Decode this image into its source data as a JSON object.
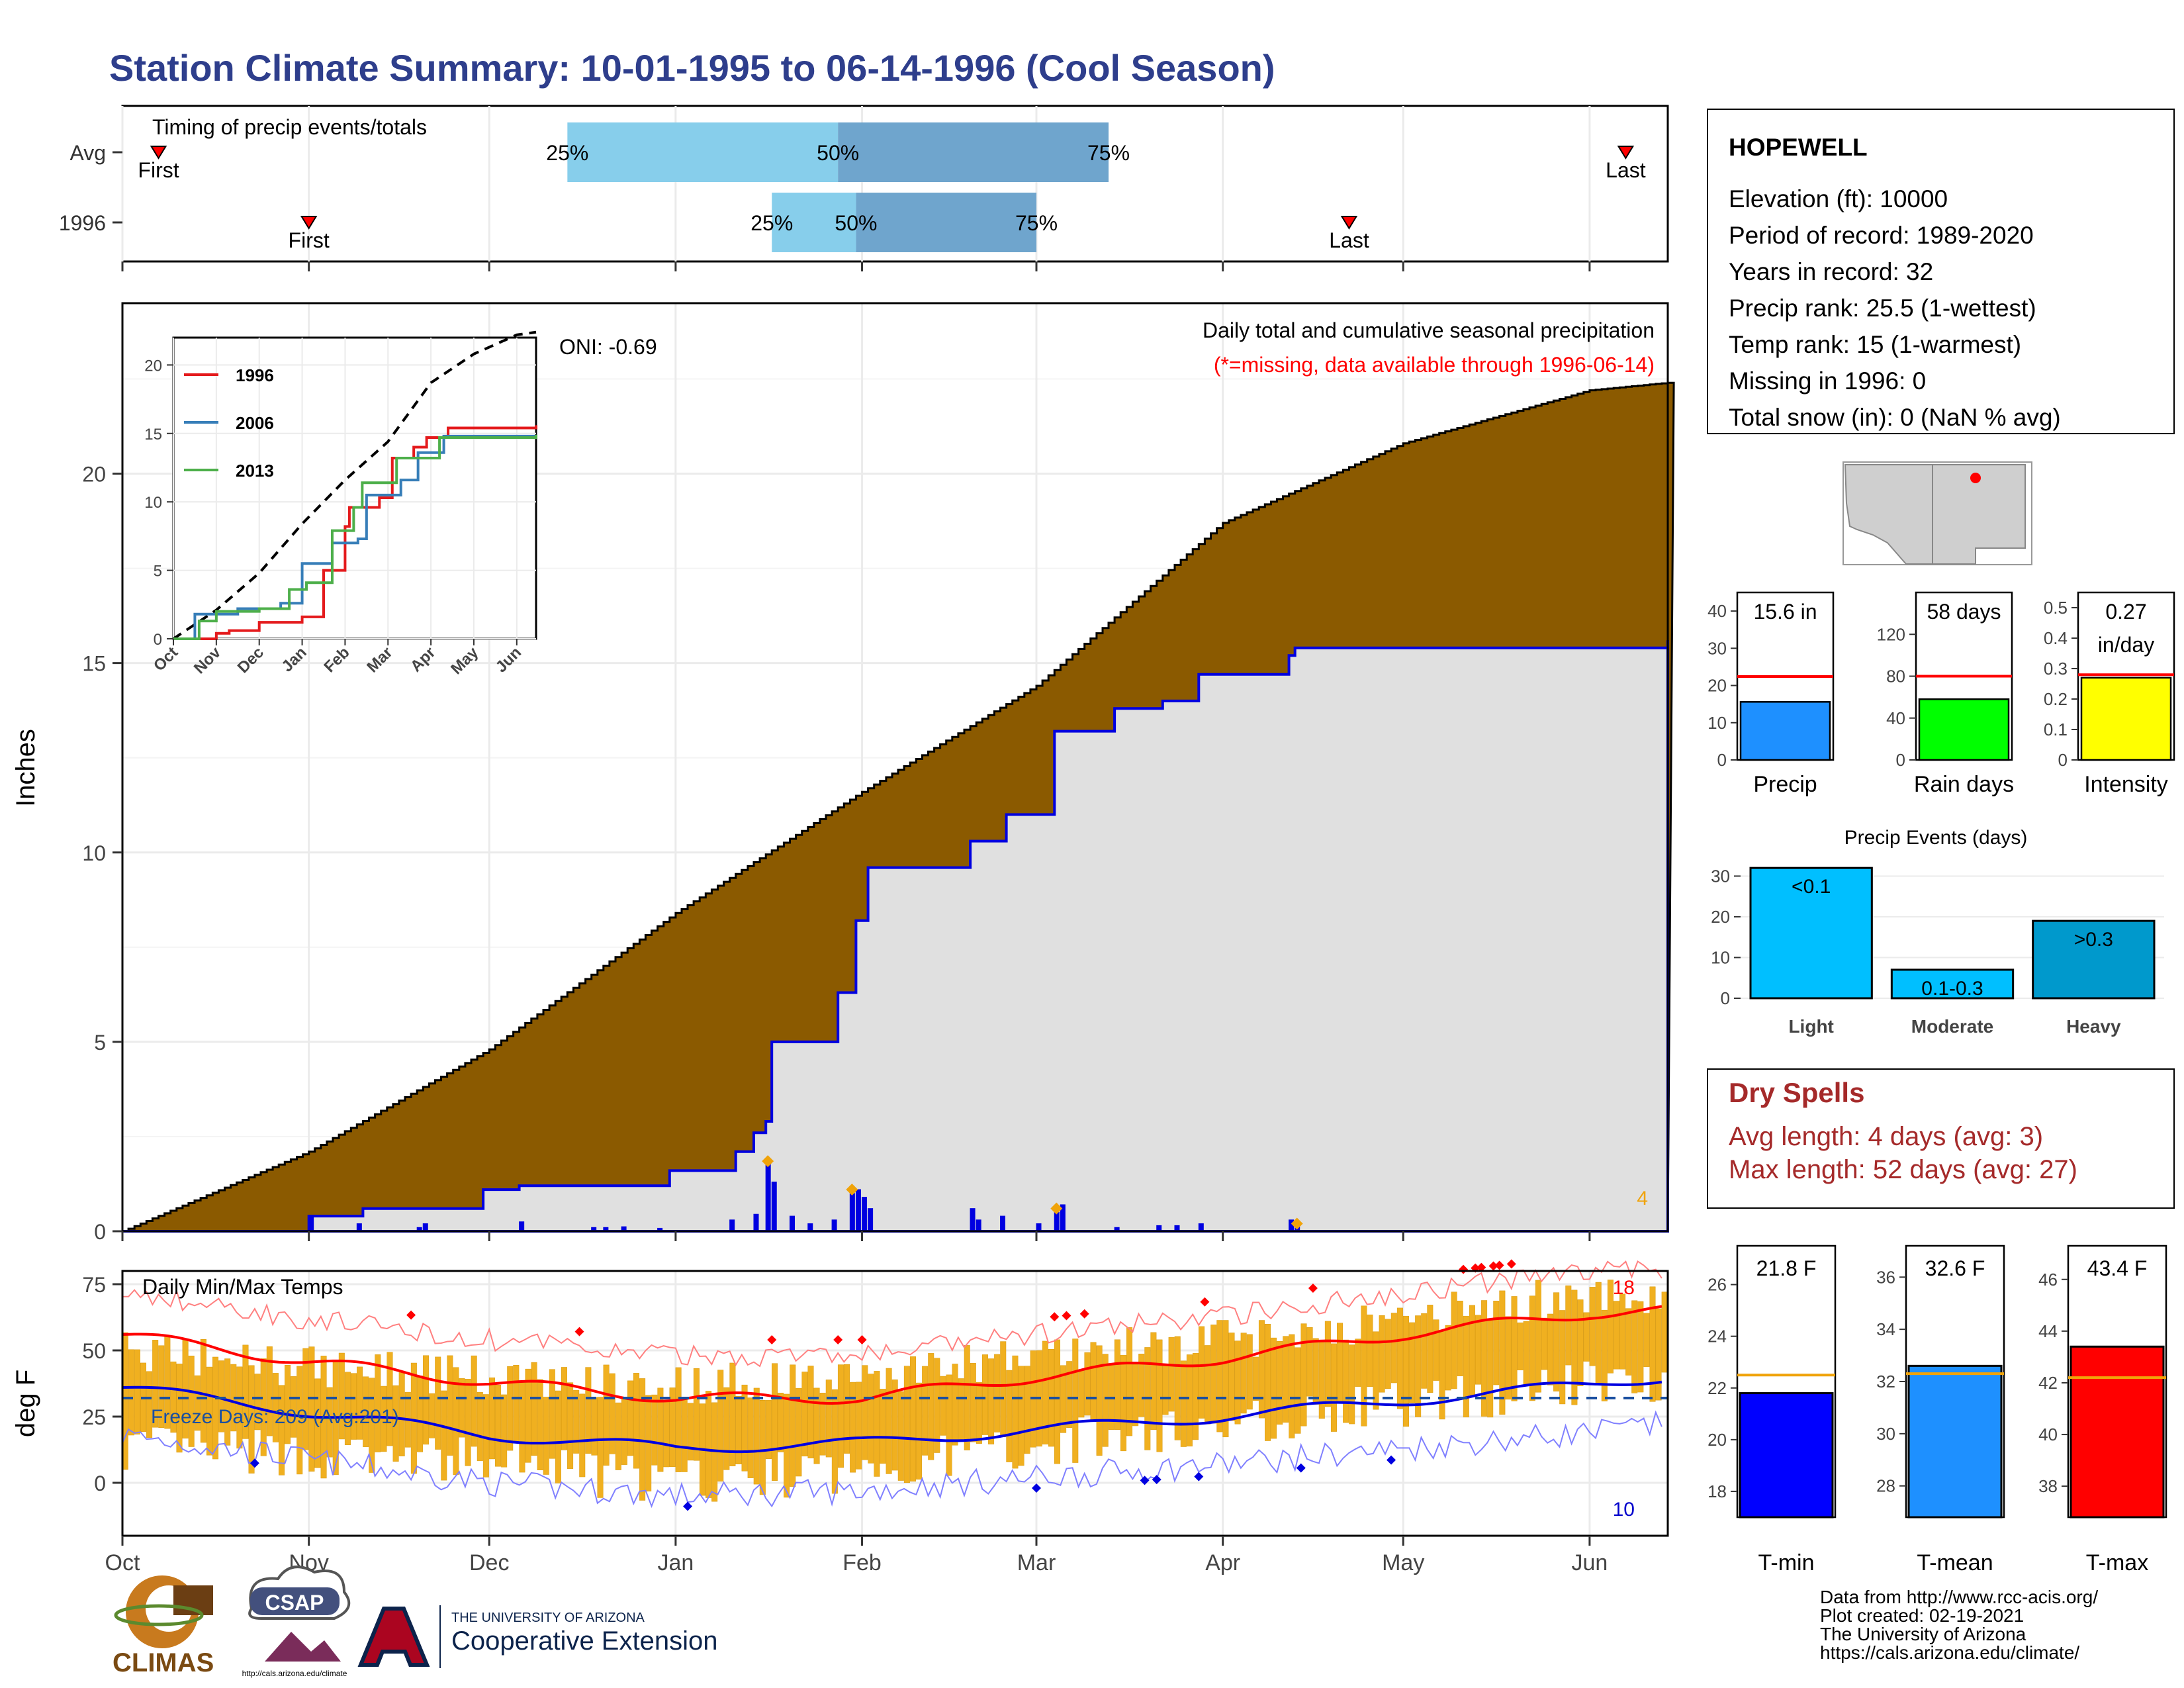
{
  "title": "Station Climate Summary: 10-01-1995 to 06-14-1996 (Cool Season)",
  "colors": {
    "brown": "#8b5a00",
    "gray_fill": "#e0e0e0",
    "blue_line": "#0000e0",
    "light_blue": "#87ceeb",
    "mid_blue": "#6fa5cd",
    "red": "#e41a1c",
    "orange": "#f0a30a",
    "dark_red_text": "#a52a2a",
    "green": "#00ff00",
    "yellow": "#ffff00",
    "cyan": "#00bfff",
    "teal": "#0099cc"
  },
  "timing": {
    "label": "Timing of precip events/totals",
    "rows": [
      {
        "name": "Avg",
        "first_label": "First",
        "last_label": "Last",
        "first": "1995-10-07",
        "last": "1996-06-07",
        "q25": "1995-12-14",
        "q50": "1996-01-28",
        "q75": "1996-03-13"
      },
      {
        "name": "1996",
        "first_label": "First",
        "last_label": "Last",
        "first": "1995-11-01",
        "last": "1996-04-22",
        "q25": "1996-01-17",
        "q50": "1996-01-31",
        "q75": "1996-03-01"
      }
    ],
    "q_labels": [
      "25%",
      "50%",
      "75%"
    ]
  },
  "precip": {
    "ylabel": "Inches",
    "header": "Daily total and cumulative seasonal precipitation",
    "subheader": "(*=missing, data available through 1996-06-14)",
    "oni": "ONI: -0.69",
    "corner_count": "4",
    "yticks": [
      "0",
      "5",
      "10",
      "15",
      "20"
    ],
    "chart_data": {
      "type": "area",
      "x_unit": "date",
      "avg_cumulative": [
        [
          "1995-10-01",
          0
        ],
        [
          "1995-11-01",
          2.1
        ],
        [
          "1995-12-01",
          4.8
        ],
        [
          "1996-01-01",
          8.4
        ],
        [
          "1996-02-01",
          11.6
        ],
        [
          "1996-03-01",
          14.4
        ],
        [
          "1996-04-01",
          18.7
        ],
        [
          "1996-05-01",
          20.8
        ],
        [
          "1996-06-01",
          22.2
        ],
        [
          "1996-06-14",
          22.4
        ]
      ],
      "year_cumulative": [
        [
          "1995-10-01",
          0
        ],
        [
          "1995-10-31",
          0
        ],
        [
          "1995-11-01",
          0.4
        ],
        [
          "1995-11-10",
          0.6
        ],
        [
          "1995-11-30",
          1.1
        ],
        [
          "1995-12-06",
          1.2
        ],
        [
          "1995-12-31",
          1.6
        ],
        [
          "1996-01-11",
          2.1
        ],
        [
          "1996-01-14",
          2.6
        ],
        [
          "1996-01-16",
          2.9
        ],
        [
          "1996-01-17",
          5.0
        ],
        [
          "1996-01-28",
          6.3
        ],
        [
          "1996-01-31",
          8.2
        ],
        [
          "1996-02-02",
          9.6
        ],
        [
          "1996-02-18",
          9.6
        ],
        [
          "1996-02-19",
          10.3
        ],
        [
          "1996-02-25",
          11.0
        ],
        [
          "1996-03-04",
          13.2
        ],
        [
          "1996-03-14",
          13.8
        ],
        [
          "1996-03-22",
          14.0
        ],
        [
          "1996-03-28",
          14.7
        ],
        [
          "1996-04-12",
          15.2
        ],
        [
          "1996-04-13",
          15.4
        ],
        [
          "1996-06-14",
          15.6
        ]
      ],
      "daily_events": [
        [
          "1995-11-01",
          0.4
        ],
        [
          "1995-11-09",
          0.2
        ],
        [
          "1995-11-19",
          0.1
        ],
        [
          "1995-11-20",
          0.2
        ],
        [
          "1995-12-06",
          0.25
        ],
        [
          "1995-12-18",
          0.1
        ],
        [
          "1995-12-20",
          0.1
        ],
        [
          "1995-12-23",
          0.12
        ],
        [
          "1995-12-29",
          0.08
        ],
        [
          "1996-01-10",
          0.3
        ],
        [
          "1996-01-14",
          0.45
        ],
        [
          "1996-01-16",
          1.85
        ],
        [
          "1996-01-17",
          1.3
        ],
        [
          "1996-01-20",
          0.4
        ],
        [
          "1996-01-23",
          0.2
        ],
        [
          "1996-01-27",
          0.3
        ],
        [
          "1996-01-30",
          1.0
        ],
        [
          "1996-01-31",
          1.1
        ],
        [
          "1996-02-01",
          0.9
        ],
        [
          "1996-02-02",
          0.6
        ],
        [
          "1996-02-19",
          0.6
        ],
        [
          "1996-02-20",
          0.3
        ],
        [
          "1996-02-24",
          0.4
        ],
        [
          "1996-03-01",
          0.2
        ],
        [
          "1996-03-04",
          0.5
        ],
        [
          "1996-03-05",
          0.7
        ],
        [
          "1996-03-14",
          0.1
        ],
        [
          "1996-03-21",
          0.15
        ],
        [
          "1996-03-24",
          0.15
        ],
        [
          "1996-03-28",
          0.2
        ],
        [
          "1996-04-12",
          0.3
        ],
        [
          "1996-04-13",
          0.2
        ]
      ],
      "markers": [
        [
          "1996-01-16",
          1.85
        ],
        [
          "1996-01-30",
          1.1
        ],
        [
          "1996-03-04",
          0.6
        ],
        [
          "1996-04-13",
          0.2
        ]
      ],
      "ylim": [
        0,
        24.5
      ]
    }
  },
  "inset": {
    "legend": [
      "1996",
      "2006",
      "2013"
    ],
    "legend_colors": [
      "#e41a1c",
      "#377eb8",
      "#4daf4a"
    ],
    "xticks": [
      "Oct",
      "Nov",
      "Dec",
      "Jan",
      "Feb",
      "Mar",
      "Apr",
      "May",
      "Jun"
    ],
    "yticks": [
      "0",
      "5",
      "10",
      "15",
      "20"
    ],
    "chart_data": {
      "type": "line",
      "ylim": [
        0,
        22
      ],
      "avg": [
        [
          0,
          0
        ],
        [
          1,
          2.1
        ],
        [
          2,
          4.8
        ],
        [
          3,
          8.4
        ],
        [
          4,
          11.6
        ],
        [
          5,
          14.4
        ],
        [
          6,
          18.7
        ],
        [
          7,
          20.8
        ],
        [
          8,
          22.2
        ],
        [
          8.45,
          22.4
        ]
      ],
      "series": [
        {
          "name": "1996",
          "values": [
            [
              0,
              0
            ],
            [
              1,
              0.4
            ],
            [
              1.3,
              0.6
            ],
            [
              2,
              1.2
            ],
            [
              3,
              1.6
            ],
            [
              3.5,
              5.0
            ],
            [
              4,
              8.2
            ],
            [
              4.1,
              9.6
            ],
            [
              4.8,
              10.3
            ],
            [
              5.1,
              13.2
            ],
            [
              5.6,
              14.0
            ],
            [
              5.9,
              14.7
            ],
            [
              6.4,
              15.4
            ],
            [
              8.45,
              15.6
            ]
          ]
        },
        {
          "name": "2006",
          "values": [
            [
              0,
              0
            ],
            [
              0.5,
              1.8
            ],
            [
              1.5,
              2.2
            ],
            [
              2.5,
              2.6
            ],
            [
              3,
              5.5
            ],
            [
              3.7,
              7.0
            ],
            [
              4.3,
              7.3
            ],
            [
              4.5,
              10.5
            ],
            [
              5.3,
              11.6
            ],
            [
              5.7,
              13.6
            ],
            [
              6.3,
              14.8
            ],
            [
              8.45,
              14.9
            ]
          ]
        },
        {
          "name": "2013",
          "values": [
            [
              0,
              0
            ],
            [
              0.6,
              1.3
            ],
            [
              1,
              2.0
            ],
            [
              2,
              2.2
            ],
            [
              2.7,
              3.6
            ],
            [
              3.1,
              4.1
            ],
            [
              3.7,
              7.9
            ],
            [
              4.2,
              9.6
            ],
            [
              4.4,
              11.4
            ],
            [
              5.2,
              13.2
            ],
            [
              6.2,
              14.7
            ],
            [
              8.45,
              14.9
            ]
          ]
        }
      ]
    }
  },
  "temps": {
    "ylabel": "deg F",
    "label": "Daily Min/Max Temps",
    "freeze_text": "Freeze Days: 209 (Avg:201)",
    "max_count": "18",
    "min_count": "10",
    "yticks": [
      "0",
      "25",
      "50",
      "75"
    ],
    "chart_data": {
      "type": "bar",
      "ylim": [
        -20,
        80
      ],
      "freeze_line": 32,
      "avg_max": [
        [
          0,
          56
        ],
        [
          30,
          46
        ],
        [
          61,
          38
        ],
        [
          92,
          32
        ],
        [
          123,
          32
        ],
        [
          152,
          40
        ],
        [
          183,
          47
        ],
        [
          213,
          56
        ],
        [
          244,
          64
        ],
        [
          256,
          65
        ]
      ],
      "avg_min": [
        [
          0,
          36
        ],
        [
          30,
          27
        ],
        [
          61,
          18
        ],
        [
          92,
          13
        ],
        [
          123,
          15
        ],
        [
          152,
          20
        ],
        [
          183,
          25
        ],
        [
          213,
          31
        ],
        [
          244,
          37
        ],
        [
          256,
          40
        ]
      ],
      "max_min_bar_ranges": [
        [
          0,
          14,
          50
        ],
        [
          30,
          10,
          44
        ],
        [
          61,
          8,
          40
        ],
        [
          92,
          0,
          37
        ],
        [
          123,
          5,
          40
        ],
        [
          152,
          15,
          48
        ],
        [
          183,
          22,
          54
        ],
        [
          213,
          30,
          62
        ],
        [
          244,
          38,
          72
        ],
        [
          256,
          40,
          70
        ]
      ]
    }
  },
  "x_axis_months": [
    "Oct",
    "Nov",
    "Dec",
    "Jan",
    "Feb",
    "Mar",
    "Apr",
    "May",
    "Jun"
  ],
  "station": {
    "name": "HOPEWELL",
    "lines": [
      "Elevation (ft): 10000",
      "Period of record: 1989-2020",
      "Years in record: 32",
      "Precip rank: 25.5 (1-wettest)",
      "Temp rank: 15 (1-warmest)",
      "Missing in 1996: 0",
      "Total snow (in): 0 (NaN % avg)"
    ]
  },
  "mini_bars": [
    {
      "label": "Precip",
      "value_text": "15.6 in",
      "value": 15.6,
      "avg": 22.4,
      "ymax": 45,
      "ticks": [
        0,
        10,
        20,
        30,
        40
      ],
      "color": "#1e90ff"
    },
    {
      "label": "Rain days",
      "value_text": "58 days",
      "value": 58,
      "avg": 80,
      "ymax": 160,
      "ticks": [
        0,
        40,
        80,
        120
      ],
      "color": "#00ff00"
    },
    {
      "label": "Intensity",
      "value_text": "0.27",
      "value_text2": "in/day",
      "value": 0.27,
      "avg": 0.28,
      "ymax": 0.55,
      "ticks": [
        0.0,
        0.1,
        0.2,
        0.3,
        0.4,
        0.5
      ],
      "color": "#ffff00"
    }
  ],
  "precip_events": {
    "title": "Precip Events (days)",
    "yticks": [
      "0",
      "10",
      "20",
      "30"
    ],
    "chart_data": {
      "type": "bar",
      "categories": [
        "Light",
        "Moderate",
        "Heavy"
      ],
      "values": [
        32,
        7,
        19
      ],
      "labels": [
        "<0.1",
        "0.1-0.3",
        ">0.3"
      ],
      "ylim": [
        0,
        33
      ]
    }
  },
  "dry_spells": {
    "title": "Dry Spells",
    "avg_line": "Avg length: 4 days (avg: 3)",
    "max_line": "Max length: 52 days (avg: 27)"
  },
  "temp_bars": [
    {
      "label": "T-min",
      "value_text": "21.8 F",
      "value": 21.8,
      "avg": 22.5,
      "ymin": 17,
      "ymax": 27.5,
      "ticks": [
        18,
        20,
        22,
        24,
        26
      ],
      "color": "#0000ff"
    },
    {
      "label": "T-mean",
      "value_text": "32.6 F",
      "value": 32.6,
      "avg": 32.3,
      "ymin": 26.8,
      "ymax": 37.2,
      "ticks": [
        28,
        30,
        32,
        34,
        36
      ],
      "color": "#1e90ff"
    },
    {
      "label": "T-max",
      "value_text": "43.4 F",
      "value": 43.4,
      "avg": 42.2,
      "ymin": 36.8,
      "ymax": 47.3,
      "ticks": [
        38,
        40,
        42,
        44,
        46
      ],
      "color": "#ff0000"
    }
  ],
  "credits": [
    "Data from http://www.rcc-acis.org/",
    "Plot created: 02-19-2021",
    "The University of Arizona",
    "https://cals.arizona.edu/climate/"
  ],
  "logos": {
    "climas": "CLIMAS",
    "csap": "CSAP",
    "csap_url": "http://cals.arizona.edu/climate",
    "ua_small": "THE UNIVERSITY OF ARIZONA",
    "ua_big": "Cooperative Extension"
  }
}
